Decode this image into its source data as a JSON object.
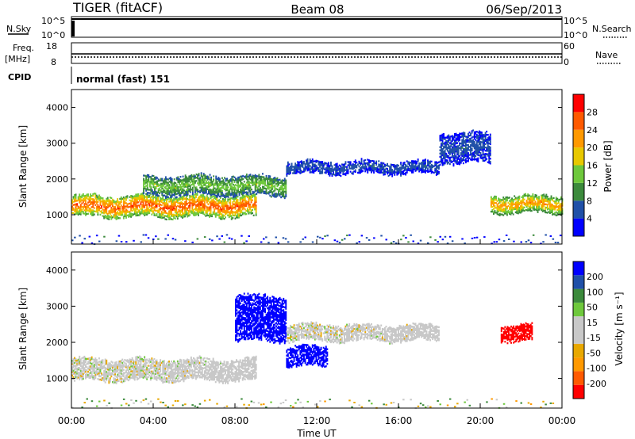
{
  "header": {
    "station": "TIGER (fitACF)",
    "beam": "Beam 08",
    "date": "06/Sep/2013"
  },
  "info_panels": {
    "nsky_label": "N.Sky",
    "nsky_ticks": [
      "10^5",
      "10^0"
    ],
    "nsearch_label": "N.Search",
    "freq_label": "Freq.",
    "freq_unit": "[MHz]",
    "freq_ticks": [
      "18",
      "8"
    ],
    "nave_label": "Nave",
    "nave_ticks": [
      "60",
      "0"
    ],
    "cpid_label": "CPID",
    "cpid_text": "normal (fast) 151"
  },
  "colors": {
    "power": [
      "#0000ff",
      "#2050a8",
      "#3c8a3c",
      "#6ec83c",
      "#e8c800",
      "#ff9900",
      "#ff5a00",
      "#ff0000"
    ],
    "velocity": [
      "#ff0000",
      "#ff5a00",
      "#ff9900",
      "#e8a800",
      "#c8c8c8",
      "#c8c8c8",
      "#6ec83c",
      "#3c8a3c",
      "#2050a8",
      "#0000ff"
    ]
  },
  "chart_data": [
    {
      "type": "heatmap",
      "title": "Power",
      "xlabel": "Time UT",
      "ylabel": "Slant Range [km]",
      "xlim": [
        "00:00",
        "24:00"
      ],
      "ylim": [
        180,
        4500
      ],
      "x_ticks": [
        "00:00",
        "04:00",
        "08:00",
        "12:00",
        "16:00",
        "20:00",
        "00:00"
      ],
      "y_ticks": [
        1000,
        2000,
        3000,
        4000
      ],
      "colorbar": {
        "label": "Power [dB]",
        "ticks": [
          4,
          8,
          12,
          16,
          20,
          24,
          28
        ],
        "range": [
          0,
          32
        ]
      },
      "echo_bands": [
        {
          "start_h": 0.0,
          "end_h": 9.0,
          "range_low_km": 900,
          "range_high_km": 1550,
          "power_db": 26
        },
        {
          "start_h": 3.5,
          "end_h": 10.5,
          "range_low_km": 1500,
          "range_high_km": 2100,
          "power_db": 14
        },
        {
          "start_h": 10.5,
          "end_h": 18.0,
          "range_low_km": 2100,
          "range_high_km": 2500,
          "power_db": 6
        },
        {
          "start_h": 18.0,
          "end_h": 20.5,
          "range_low_km": 2400,
          "range_high_km": 3300,
          "power_db": 6
        },
        {
          "start_h": 20.5,
          "end_h": 24.0,
          "range_low_km": 1000,
          "range_high_km": 1550,
          "power_db": 22
        }
      ]
    },
    {
      "type": "heatmap",
      "title": "Velocity",
      "xlabel": "Time UT",
      "ylabel": "Slant Range [km]",
      "xlim": [
        "00:00",
        "24:00"
      ],
      "ylim": [
        180,
        4500
      ],
      "x_ticks": [
        "00:00",
        "04:00",
        "08:00",
        "12:00",
        "16:00",
        "20:00",
        "00:00"
      ],
      "y_ticks": [
        1000,
        2000,
        3000,
        4000
      ],
      "colorbar": {
        "label": "Velocity [m s⁻¹]",
        "ticks": [
          200,
          100,
          50,
          15,
          -15,
          -50,
          -100,
          -200
        ]
      },
      "echo_bands": [
        {
          "start_h": 0.0,
          "end_h": 9.0,
          "range_low_km": 900,
          "range_high_km": 1550,
          "velocity": 0
        },
        {
          "start_h": 8.0,
          "end_h": 10.5,
          "range_low_km": 2000,
          "range_high_km": 3300,
          "velocity": 200
        },
        {
          "start_h": 10.5,
          "end_h": 12.5,
          "range_low_km": 1300,
          "range_high_km": 1900,
          "velocity": 200
        },
        {
          "start_h": 10.5,
          "end_h": 18.0,
          "range_low_km": 2000,
          "range_high_km": 2500,
          "velocity": 0
        },
        {
          "start_h": 21.0,
          "end_h": 22.5,
          "range_low_km": 2000,
          "range_high_km": 2500,
          "velocity": -200
        }
      ]
    }
  ]
}
